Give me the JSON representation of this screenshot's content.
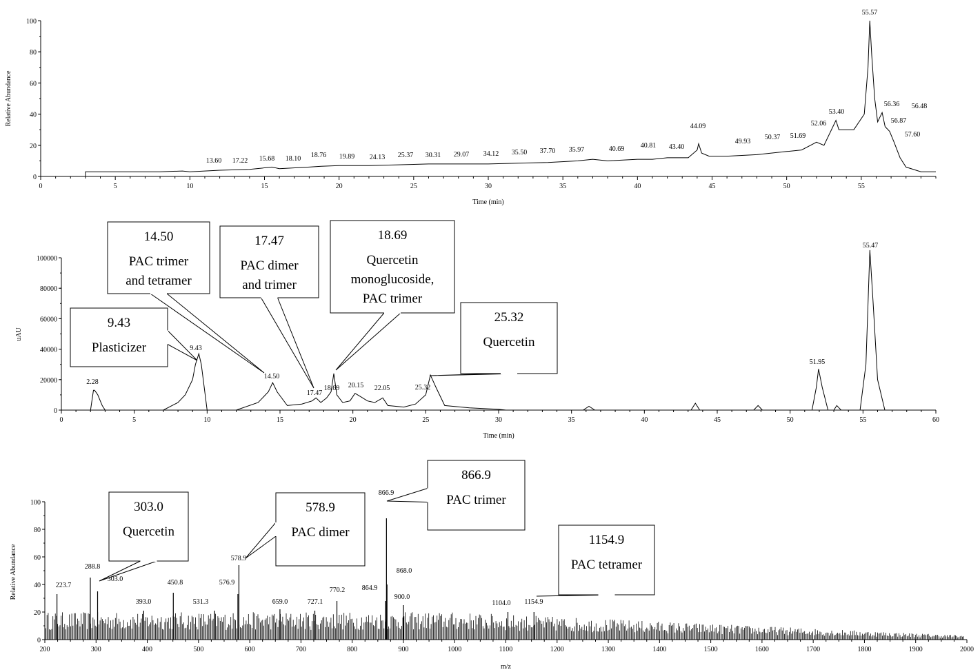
{
  "chart_data": [
    {
      "type": "line",
      "title": "",
      "xlabel": "Time (min)",
      "ylabel": "Relative Abundance",
      "xlim": [
        0,
        60
      ],
      "ylim": [
        0,
        100
      ],
      "xticks": [
        "0",
        "5",
        "10",
        "15",
        "20",
        "25",
        "30",
        "35",
        "40",
        "45",
        "50",
        "55"
      ],
      "yticks": [
        "0",
        "20",
        "40",
        "60",
        "80",
        "100"
      ],
      "grid": false,
      "series": [
        {
          "x": [
            3.0,
            3.0,
            5,
            8,
            9.5,
            10,
            12,
            14,
            15.5,
            16,
            18,
            18.8,
            20,
            22,
            24,
            26,
            28,
            30,
            32,
            34,
            36,
            37,
            38,
            40,
            41,
            42,
            43.4,
            44.0,
            44.1,
            44.3,
            44.8,
            46,
            48,
            50,
            51,
            52.0,
            52.5,
            53.3,
            53.5,
            54.5,
            55.2,
            55.45,
            55.57,
            55.7,
            55.9,
            56.1,
            56.4,
            56.6,
            56.9,
            57.2,
            57.6,
            58,
            59,
            60
          ],
          "y": [
            0,
            3,
            3,
            3,
            3.5,
            3,
            4,
            4.5,
            6,
            5,
            6,
            6.5,
            7,
            7,
            7.5,
            8,
            8,
            8,
            8.5,
            9,
            10,
            11,
            10,
            11,
            11,
            12,
            12,
            17,
            21,
            15,
            13,
            13,
            14,
            16,
            17,
            22,
            20,
            36,
            30,
            30,
            40,
            70,
            100,
            78,
            50,
            35,
            41,
            32,
            29,
            22,
            12,
            6,
            3,
            3
          ]
        }
      ],
      "peak_labels": [
        "13.60",
        "17.22",
        "15.68",
        "18.10",
        "18.76",
        "19.89",
        "24.13",
        "25.37",
        "30.31",
        "29.07",
        "34.12",
        "35.50",
        "37.70",
        "35.97",
        "40.69",
        "40.81",
        "43.40",
        "44.09",
        "49.93",
        "50.37",
        "51.69",
        "52.06",
        "53.40",
        "55.57",
        "56.36",
        "56.48",
        "56.87",
        "57.60"
      ]
    },
    {
      "type": "line",
      "title": "",
      "xlabel": "Time (min)",
      "ylabel": "uAU",
      "xlim": [
        0,
        60
      ],
      "ylim": [
        0,
        100000
      ],
      "xticks": [
        "0",
        "5",
        "10",
        "15",
        "20",
        "25",
        "30",
        "35",
        "40",
        "45",
        "50",
        "55",
        "60"
      ],
      "yticks": [
        "0",
        "20000",
        "40000",
        "60000",
        "80000",
        "100000"
      ],
      "grid": false,
      "series": [
        {
          "x": [
            2.0,
            2.2,
            2.28,
            2.5,
            2.8,
            3.0,
            7.0,
            8.0,
            8.5,
            9.0,
            9.2,
            9.43,
            9.6,
            10.0,
            12.0,
            13.5,
            14.2,
            14.5,
            14.8,
            15.5,
            16.5,
            17.2,
            17.47,
            17.8,
            18.2,
            18.5,
            18.69,
            18.9,
            19.3,
            19.8,
            20.15,
            20.5,
            21.0,
            21.5,
            22.05,
            22.4,
            23.5,
            24.3,
            25.0,
            25.32,
            25.7,
            26.3,
            28,
            30,
            30.5,
            35.8,
            36.2,
            36.6,
            43.2,
            43.5,
            43.8,
            47.5,
            47.8,
            48.1,
            51.5,
            51.8,
            51.95,
            52.2,
            52.6,
            53.0,
            53.2,
            53.5,
            54.8,
            55.2,
            55.47,
            55.7,
            56.0,
            56.5,
            60
          ],
          "y": [
            0,
            13000,
            13000,
            10000,
            3000,
            0,
            0,
            5000,
            10000,
            20000,
            30000,
            37000,
            30000,
            0,
            0,
            5000,
            12000,
            18000,
            12000,
            3000,
            4000,
            6000,
            8000,
            5000,
            8000,
            12000,
            24000,
            10000,
            5000,
            6000,
            11000,
            9000,
            6000,
            5000,
            8000,
            3000,
            2000,
            4000,
            10000,
            23000,
            15000,
            3000,
            1500,
            500,
            0,
            0,
            2500,
            0,
            0,
            4500,
            0,
            0,
            3000,
            0,
            0,
            15000,
            27000,
            15000,
            0,
            0,
            3000,
            0,
            0,
            30000,
            105000,
            70000,
            20000,
            0,
            0
          ]
        }
      ],
      "peak_labels": [
        "2.28",
        "9.43",
        "14.50",
        "17.47",
        "18.69",
        "20.15",
        "22.05",
        "25.32",
        "51.95",
        "55.47"
      ],
      "callouts": [
        {
          "value": "9.43",
          "lines": [
            "Plasticizer"
          ]
        },
        {
          "value": "14.50",
          "lines": [
            "PAC trimer",
            "and tetramer"
          ]
        },
        {
          "value": "17.47",
          "lines": [
            "PAC dimer",
            "and trimer"
          ]
        },
        {
          "value": "18.69",
          "lines": [
            "Quercetin",
            "monoglucoside,",
            "PAC trimer"
          ]
        },
        {
          "value": "25.32",
          "lines": [
            "Quercetin"
          ]
        }
      ]
    },
    {
      "type": "bar",
      "title": "",
      "xlabel": "m/z",
      "ylabel": "Relative Abundance",
      "xlim": [
        200,
        2000
      ],
      "ylim": [
        0,
        100
      ],
      "xticks": [
        "200",
        "300",
        "400",
        "500",
        "600",
        "700",
        "800",
        "900",
        "1000",
        "1100",
        "1200",
        "1300",
        "1400",
        "1500",
        "1600",
        "1700",
        "1800",
        "1900",
        "2000"
      ],
      "yticks": [
        "0",
        "20",
        "40",
        "60",
        "80",
        "100"
      ],
      "grid": false,
      "major_peaks": [
        {
          "mz": 223.7,
          "y": 33
        },
        {
          "mz": 288.8,
          "y": 45
        },
        {
          "mz": 303.0,
          "y": 35
        },
        {
          "mz": 393.0,
          "y": 21
        },
        {
          "mz": 450.8,
          "y": 34
        },
        {
          "mz": 531.3,
          "y": 21
        },
        {
          "mz": 576.9,
          "y": 33
        },
        {
          "mz": 578.9,
          "y": 54
        },
        {
          "mz": 659.0,
          "y": 22
        },
        {
          "mz": 727.1,
          "y": 21
        },
        {
          "mz": 770.2,
          "y": 28
        },
        {
          "mz": 864.9,
          "y": 28
        },
        {
          "mz": 866.9,
          "y": 88
        },
        {
          "mz": 868.0,
          "y": 40
        },
        {
          "mz": 900.0,
          "y": 25
        },
        {
          "mz": 1104.0,
          "y": 20
        },
        {
          "mz": 1154.9,
          "y": 20
        }
      ],
      "peak_labels": [
        "223.7",
        "288.8",
        "303.0",
        "393.0",
        "450.8",
        "531.3",
        "576.9",
        "578.9",
        "659.0",
        "727.1",
        "770.2",
        "864.9",
        "866.9",
        "868.0",
        "900.0",
        "1104.0",
        "1154.9"
      ],
      "callouts": [
        {
          "value": "303.0",
          "lines": [
            "Quercetin"
          ]
        },
        {
          "value": "578.9",
          "lines": [
            "PAC dimer"
          ]
        },
        {
          "value": "866.9",
          "lines": [
            "PAC trimer"
          ]
        },
        {
          "value": "1154.9",
          "lines": [
            "PAC tetramer"
          ]
        }
      ]
    }
  ]
}
